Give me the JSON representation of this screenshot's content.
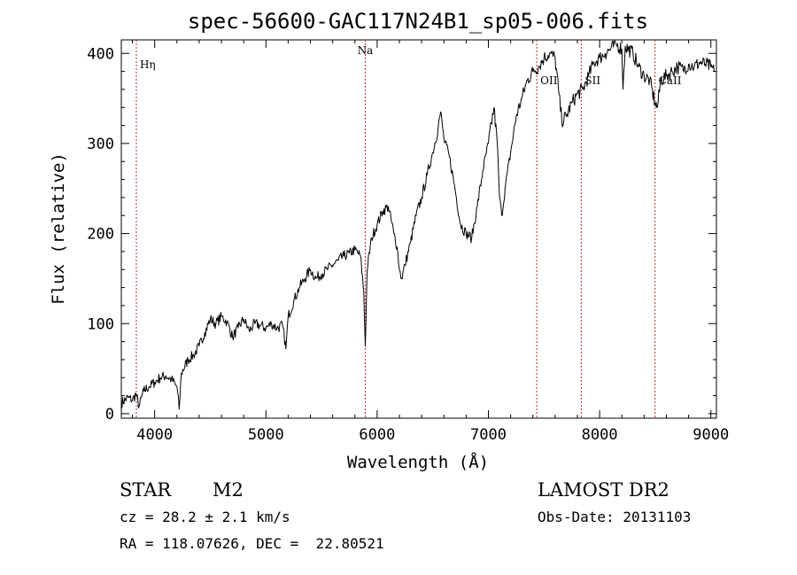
{
  "chart_data": {
    "type": "line",
    "title": "spec-56600-GAC117N24B1_sp05-006.fits",
    "xlabel": "Wavelength (Å)",
    "ylabel": "Flux (relative)",
    "xlim": [
      3700,
      9050
    ],
    "ylim": [
      -5,
      415
    ],
    "xticks": [
      4000,
      5000,
      6000,
      7000,
      8000,
      9000
    ],
    "yticks": [
      0,
      100,
      200,
      300,
      400
    ],
    "grid": false,
    "series_color": "#000000",
    "line_color": "#b03030",
    "spectral_lines": [
      {
        "label": "Hη",
        "x": 3835
      },
      {
        "label": "Na",
        "x": 5893
      },
      {
        "label": "OII",
        "x": 7435
      },
      {
        "label": "SII",
        "x": 7835
      },
      {
        "label": "CaII",
        "x": 8498
      }
    ],
    "spectrum": [
      [
        3700,
        12
      ],
      [
        3760,
        18
      ],
      [
        3800,
        15
      ],
      [
        3830,
        22
      ],
      [
        3860,
        8
      ],
      [
        3900,
        25
      ],
      [
        3950,
        30
      ],
      [
        4000,
        35
      ],
      [
        4050,
        40
      ],
      [
        4100,
        42
      ],
      [
        4150,
        38
      ],
      [
        4200,
        30
      ],
      [
        4220,
        5
      ],
      [
        4240,
        45
      ],
      [
        4300,
        60
      ],
      [
        4350,
        65
      ],
      [
        4400,
        75
      ],
      [
        4450,
        90
      ],
      [
        4500,
        105
      ],
      [
        4550,
        100
      ],
      [
        4600,
        108
      ],
      [
        4650,
        102
      ],
      [
        4700,
        85
      ],
      [
        4750,
        95
      ],
      [
        4800,
        105
      ],
      [
        4850,
        92
      ],
      [
        4900,
        100
      ],
      [
        4950,
        98
      ],
      [
        5000,
        95
      ],
      [
        5050,
        100
      ],
      [
        5100,
        95
      ],
      [
        5150,
        98
      ],
      [
        5180,
        72
      ],
      [
        5200,
        108
      ],
      [
        5250,
        125
      ],
      [
        5300,
        140
      ],
      [
        5350,
        150
      ],
      [
        5400,
        160
      ],
      [
        5450,
        150
      ],
      [
        5500,
        155
      ],
      [
        5550,
        160
      ],
      [
        5600,
        165
      ],
      [
        5650,
        170
      ],
      [
        5700,
        175
      ],
      [
        5750,
        178
      ],
      [
        5800,
        182
      ],
      [
        5850,
        175
      ],
      [
        5880,
        135
      ],
      [
        5893,
        75
      ],
      [
        5910,
        160
      ],
      [
        5950,
        195
      ],
      [
        6000,
        210
      ],
      [
        6050,
        225
      ],
      [
        6100,
        230
      ],
      [
        6150,
        200
      ],
      [
        6180,
        185
      ],
      [
        6200,
        160
      ],
      [
        6220,
        150
      ],
      [
        6250,
        165
      ],
      [
        6300,
        190
      ],
      [
        6350,
        220
      ],
      [
        6400,
        240
      ],
      [
        6450,
        265
      ],
      [
        6500,
        290
      ],
      [
        6550,
        320
      ],
      [
        6570,
        335
      ],
      [
        6600,
        305
      ],
      [
        6650,
        285
      ],
      [
        6700,
        250
      ],
      [
        6750,
        210
      ],
      [
        6800,
        200
      ],
      [
        6850,
        195
      ],
      [
        6900,
        230
      ],
      [
        6950,
        270
      ],
      [
        7000,
        300
      ],
      [
        7050,
        340
      ],
      [
        7080,
        300
      ],
      [
        7100,
        240
      ],
      [
        7120,
        220
      ],
      [
        7150,
        250
      ],
      [
        7200,
        290
      ],
      [
        7250,
        330
      ],
      [
        7300,
        350
      ],
      [
        7350,
        370
      ],
      [
        7400,
        380
      ],
      [
        7450,
        385
      ],
      [
        7500,
        395
      ],
      [
        7550,
        400
      ],
      [
        7600,
        395
      ],
      [
        7630,
        360
      ],
      [
        7660,
        325
      ],
      [
        7700,
        330
      ],
      [
        7750,
        345
      ],
      [
        7800,
        355
      ],
      [
        7850,
        360
      ],
      [
        7900,
        375
      ],
      [
        7950,
        390
      ],
      [
        8000,
        395
      ],
      [
        8050,
        400
      ],
      [
        8100,
        405
      ],
      [
        8150,
        410
      ],
      [
        8200,
        405
      ],
      [
        8210,
        360
      ],
      [
        8230,
        408
      ],
      [
        8300,
        400
      ],
      [
        8350,
        385
      ],
      [
        8400,
        375
      ],
      [
        8450,
        370
      ],
      [
        8498,
        345
      ],
      [
        8520,
        340
      ],
      [
        8550,
        370
      ],
      [
        8600,
        375
      ],
      [
        8650,
        380
      ],
      [
        8700,
        385
      ],
      [
        8750,
        382
      ],
      [
        8800,
        388
      ],
      [
        8850,
        385
      ],
      [
        8900,
        390
      ],
      [
        8950,
        388
      ],
      [
        9000,
        385
      ],
      [
        9030,
        380
      ]
    ]
  },
  "info": {
    "object_class": "STAR",
    "subclass": "M2",
    "survey": "LAMOST DR2",
    "redshift": "cz = 28.2 ± 2.1 km/s",
    "obs_date": "Obs-Date: 20131103",
    "coords": "RA = 118.07626, DEC =  22.80521"
  }
}
